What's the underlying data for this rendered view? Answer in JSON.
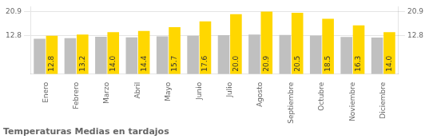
{
  "chart_data": {
    "type": "bar",
    "title": "Temperaturas Medias en tardajos",
    "categories": [
      "Enero",
      "Febrero",
      "Marzo",
      "Abril",
      "Mayo",
      "Junio",
      "Julio",
      "Agosto",
      "Septiembre",
      "Octubre",
      "Noviembre",
      "Diciembre"
    ],
    "series": [
      {
        "color": "#C0C0C0",
        "values": [
          11.8,
          12.0,
          12.5,
          12.3,
          12.6,
          12.8,
          13.0,
          13.2,
          13.1,
          12.9,
          12.4,
          12.2
        ]
      },
      {
        "color": "#FFD700",
        "values": [
          12.8,
          13.2,
          14.0,
          14.4,
          15.7,
          17.6,
          20.0,
          20.9,
          20.5,
          18.5,
          16.3,
          14.0
        ],
        "value_labels": [
          "12.8",
          "13.2",
          "14.0",
          "14.4",
          "15.7",
          "17.6",
          "20.0",
          "20.9",
          "20.5",
          "18.5",
          "16.3",
          "14.0"
        ]
      }
    ],
    "data_labels": true,
    "ylim": [
      0,
      22.5
    ],
    "yticks": [
      12.8,
      20.9
    ],
    "y2lim": [
      0,
      22.5
    ],
    "y2ticks": [
      12.8,
      20.9
    ],
    "grid": true
  }
}
